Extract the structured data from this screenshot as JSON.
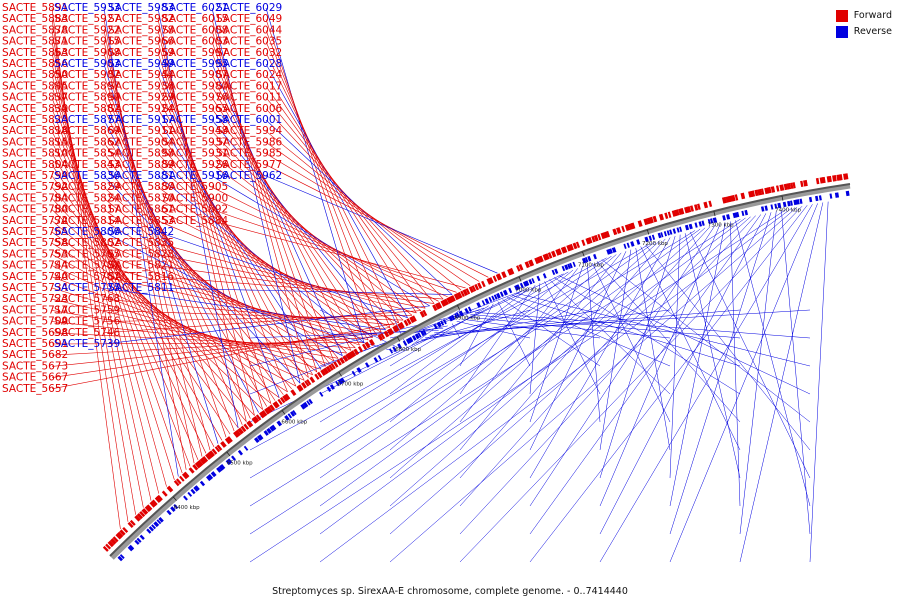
{
  "caption": "Streptomyces sp. SirexAA-E chromosome, complete genome. - 0..7414440",
  "legend": [
    {
      "label": "Forward",
      "color": "#e00000"
    },
    {
      "label": "Reverse",
      "color": "#0000e0"
    }
  ],
  "colors": {
    "forward": "#e00000",
    "reverse": "#0000e0",
    "axis": "#555555"
  },
  "ticks": [
    "6400 kbp",
    "6500 kbp",
    "6600 kbp",
    "6700 kbp",
    "6800 kbp",
    "6900 kbp",
    "7000 kbp",
    "7100 kbp",
    "7200 kbp",
    "7300 kbp",
    "7400 kbp"
  ],
  "forward_columns": [
    [
      "SACTE_5891",
      "SACTE_5883",
      "SACTE_5878",
      "SACTE_5871",
      "SACTE_5863",
      "SACTE_5856",
      "SACTE_5850",
      "SACTE_5845",
      "SACTE_5837",
      "SACTE_5830",
      "SACTE_5825",
      "SACTE_5818",
      "SACTE_5815",
      "SACTE_5810",
      "SACTE_5804",
      "SACTE_5799",
      "SACTE_5792",
      "SACTE_5784",
      "SACTE_5780",
      "SACTE_5772",
      "SACTE_5765",
      "SACTE_5758",
      "SACTE_5753",
      "SACTE_5744",
      "SACTE_5740",
      "SACTE_5734",
      "SACTE_5723",
      "SACTE_5717",
      "SACTE_5709",
      "SACTE_5698",
      "SACTE_5691",
      "SACTE_5682",
      "SACTE_5673",
      "SACTE_5667",
      "SACTE_5657"
    ],
    [
      "SACTE_5933",
      "SACTE_5927",
      "SACTE_5922",
      "SACTE_5915",
      "SACTE_5908",
      "SACTE_5903",
      "SACTE_5902",
      "SACTE_5897",
      "SACTE_5890",
      "SACTE_5882",
      "SACTE_5877",
      "SACTE_5869",
      "SACTE_5862",
      "SACTE_5854",
      "SACTE_5843",
      "SACTE_5836",
      "SACTE_5829",
      "SACTE_5824",
      "SACTE_5817",
      "SACTE_5814",
      "SACTE_5806",
      "SACTE_5802",
      "SACTE_5795",
      "SACTE_5788",
      "SACTE_5781",
      "SACTE_5775",
      "SACTE_5768",
      "SACTE_5759",
      "SACTE_5756",
      "SACTE_5746",
      "SACTE_5739"
    ],
    [
      "SACTE_5983",
      "SACTE_5982",
      "SACTE_5978",
      "SACTE_5966",
      "SACTE_5959",
      "SACTE_5949",
      "SACTE_5944",
      "SACTE_5936",
      "SACTE_5929",
      "SACTE_5924",
      "SACTE_5917",
      "SACTE_5911",
      "SACTE_5904",
      "SACTE_5898",
      "SACTE_5889",
      "SACTE_5881",
      "SACTE_5880",
      "SACTE_5870",
      "SACTE_5861",
      "SACTE_5853",
      "SACTE_5842",
      "SACTE_5835",
      "SACTE_5828",
      "SACTE_5821",
      "SACTE_5816",
      "SACTE_5811"
    ],
    [
      "SACTE_6021",
      "SACTE_6015",
      "SACTE_6008",
      "SACTE_6003",
      "SACTE_5997",
      "SACTE_5995",
      "SACTE_5987",
      "SACTE_5980",
      "SACTE_5976",
      "SACTE_5965",
      "SACTE_5958",
      "SACTE_5948",
      "SACTE_5937",
      "SACTE_5931",
      "SACTE_5926",
      "SACTE_5916",
      "SACTE_5905",
      "SACTE_5900",
      "SACTE_5892",
      "SACTE_5884"
    ],
    [
      "SACTE_6029",
      "SACTE_6049",
      "SACTE_6044",
      "SACTE_6035",
      "SACTE_6032",
      "SACTE_6028",
      "SACTE_6024",
      "SACTE_6017",
      "SACTE_6011",
      "SACTE_6006",
      "SACTE_6001",
      "SACTE_5994",
      "SACTE_5986",
      "SACTE_5985",
      "SACTE_5977",
      "SACTE_5962"
    ]
  ]
}
